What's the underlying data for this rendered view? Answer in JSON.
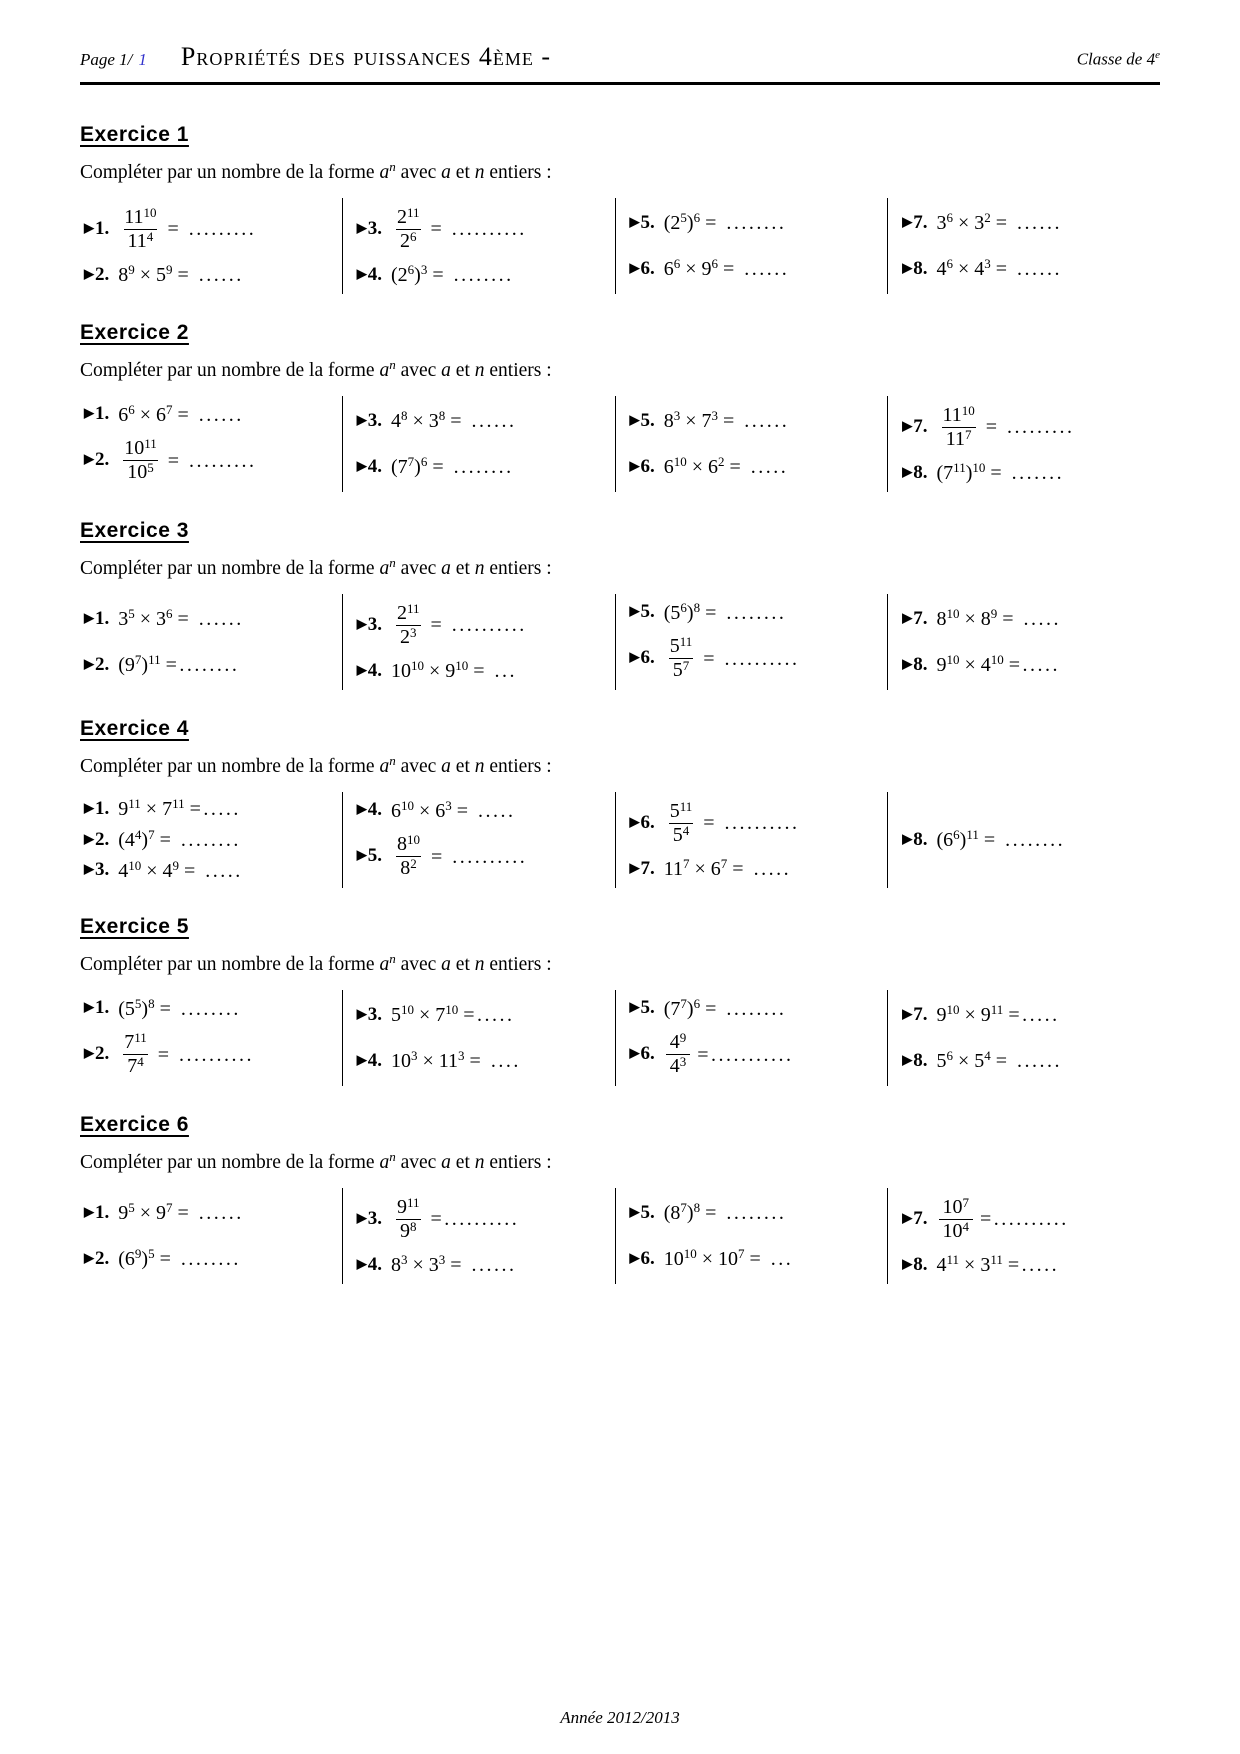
{
  "colors": {
    "page_link_blue": "#3333cc"
  },
  "symbols": {
    "marker": "▶",
    "dot": ".",
    "times": "×",
    "lparen": "(",
    "rparen": ")"
  },
  "header": {
    "page_label": "Page 1/",
    "page_number": "1",
    "title": "Propriétés des puissances 4ème -",
    "classe_text": "Classe de 4",
    "classe_sup": "e"
  },
  "instruction": {
    "part1": "Compléter par un nombre de la forme ",
    "var_a": "a",
    "var_n_sup": "n",
    "part2": " avec ",
    "var_a2": "a",
    "part3": " et ",
    "var_n2": "n",
    "part4": " entiers :"
  },
  "exercises": [
    {
      "title": "Exercice 1",
      "columns": [
        [
          {
            "n": "1",
            "k": "frac",
            "a": "11",
            "p": "10",
            "b": "11",
            "q": "4",
            "eq": "= ........."
          },
          {
            "n": "2",
            "k": "prod",
            "a": "8",
            "p": "9",
            "b": "5",
            "q": "9",
            "eq": "= ......"
          }
        ],
        [
          {
            "n": "3",
            "k": "frac",
            "a": "2",
            "p": "11",
            "b": "2",
            "q": "6",
            "eq": "= .........."
          },
          {
            "n": "4",
            "k": "pp",
            "a": "2",
            "p": "6",
            "q": "3",
            "eq": "= ........"
          }
        ],
        [
          {
            "n": "5",
            "k": "pp",
            "a": "2",
            "p": "5",
            "q": "6",
            "eq": "= ........"
          },
          {
            "n": "6",
            "k": "prod",
            "a": "6",
            "p": "6",
            "b": "9",
            "q": "6",
            "eq": "= ......"
          }
        ],
        [
          {
            "n": "7",
            "k": "prod",
            "a": "3",
            "p": "6",
            "b": "3",
            "q": "2",
            "eq": "= ......"
          },
          {
            "n": "8",
            "k": "prod",
            "a": "4",
            "p": "6",
            "b": "4",
            "q": "3",
            "eq": "= ......"
          }
        ]
      ]
    },
    {
      "title": "Exercice 2",
      "columns": [
        [
          {
            "n": "1",
            "k": "prod",
            "a": "6",
            "p": "6",
            "b": "6",
            "q": "7",
            "eq": "= ......"
          },
          {
            "n": "2",
            "k": "frac",
            "a": "10",
            "p": "11",
            "b": "10",
            "q": "5",
            "eq": "= ........."
          }
        ],
        [
          {
            "n": "3",
            "k": "prod",
            "a": "4",
            "p": "8",
            "b": "3",
            "q": "8",
            "eq": "= ......"
          },
          {
            "n": "4",
            "k": "pp",
            "a": "7",
            "p": "7",
            "q": "6",
            "eq": "= ........"
          }
        ],
        [
          {
            "n": "5",
            "k": "prod",
            "a": "8",
            "p": "3",
            "b": "7",
            "q": "3",
            "eq": "= ......"
          },
          {
            "n": "6",
            "k": "prod",
            "a": "6",
            "p": "10",
            "b": "6",
            "q": "2",
            "eq": "= ....."
          }
        ],
        [
          {
            "n": "7",
            "k": "frac",
            "a": "11",
            "p": "10",
            "b": "11",
            "q": "7",
            "eq": "= ........."
          },
          {
            "n": "8",
            "k": "pp",
            "a": "7",
            "p": "11",
            "q": "10",
            "eq": "= ......."
          }
        ]
      ]
    },
    {
      "title": "Exercice 3",
      "columns": [
        [
          {
            "n": "1",
            "k": "prod",
            "a": "3",
            "p": "5",
            "b": "3",
            "q": "6",
            "eq": "= ......"
          },
          {
            "n": "2",
            "k": "pp",
            "a": "9",
            "p": "7",
            "q": "11",
            "eq": "=........"
          }
        ],
        [
          {
            "n": "3",
            "k": "frac",
            "a": "2",
            "p": "11",
            "b": "2",
            "q": "3",
            "eq": "= .........."
          },
          {
            "n": "4",
            "k": "prod",
            "a": "10",
            "p": "10",
            "b": "9",
            "q": "10",
            "eq": "= ..."
          }
        ],
        [
          {
            "n": "5",
            "k": "pp",
            "a": "5",
            "p": "6",
            "q": "8",
            "eq": "= ........"
          },
          {
            "n": "6",
            "k": "frac",
            "a": "5",
            "p": "11",
            "b": "5",
            "q": "7",
            "eq": "= .........."
          }
        ],
        [
          {
            "n": "7",
            "k": "prod",
            "a": "8",
            "p": "10",
            "b": "8",
            "q": "9",
            "eq": "= ....."
          },
          {
            "n": "8",
            "k": "prod",
            "a": "9",
            "p": "10",
            "b": "4",
            "q": "10",
            "eq": "=....."
          }
        ]
      ]
    },
    {
      "title": "Exercice 4",
      "columns": [
        [
          {
            "n": "1",
            "k": "prod",
            "a": "9",
            "p": "11",
            "b": "7",
            "q": "11",
            "eq": "=....."
          },
          {
            "n": "2",
            "k": "pp",
            "a": "4",
            "p": "4",
            "q": "7",
            "eq": "= ........"
          },
          {
            "n": "3",
            "k": "prod",
            "a": "4",
            "p": "10",
            "b": "4",
            "q": "9",
            "eq": "= ....."
          }
        ],
        [
          {
            "n": "4",
            "k": "prod",
            "a": "6",
            "p": "10",
            "b": "6",
            "q": "3",
            "eq": "= ....."
          },
          {
            "n": "5",
            "k": "frac",
            "a": "8",
            "p": "10",
            "b": "8",
            "q": "2",
            "eq": "= .........."
          }
        ],
        [
          {
            "n": "6",
            "k": "frac",
            "a": "5",
            "p": "11",
            "b": "5",
            "q": "4",
            "eq": "= .........."
          },
          {
            "n": "7",
            "k": "prod",
            "a": "11",
            "p": "7",
            "b": "6",
            "q": "7",
            "eq": "= ....."
          }
        ],
        [
          {
            "n": "8",
            "k": "pp",
            "a": "6",
            "p": "6",
            "q": "11",
            "eq": "= ........"
          }
        ]
      ]
    },
    {
      "title": "Exercice 5",
      "columns": [
        [
          {
            "n": "1",
            "k": "pp",
            "a": "5",
            "p": "5",
            "q": "8",
            "eq": "= ........"
          },
          {
            "n": "2",
            "k": "frac",
            "a": "7",
            "p": "11",
            "b": "7",
            "q": "4",
            "eq": "= .........."
          }
        ],
        [
          {
            "n": "3",
            "k": "prod",
            "a": "5",
            "p": "10",
            "b": "7",
            "q": "10",
            "eq": "=....."
          },
          {
            "n": "4",
            "k": "prod",
            "a": "10",
            "p": "3",
            "b": "11",
            "q": "3",
            "eq": "= ...."
          }
        ],
        [
          {
            "n": "5",
            "k": "pp",
            "a": "7",
            "p": "7",
            "q": "6",
            "eq": "= ........"
          },
          {
            "n": "6",
            "k": "frac",
            "a": "4",
            "p": "9",
            "b": "4",
            "q": "3",
            "eq": "=..........."
          }
        ],
        [
          {
            "n": "7",
            "k": "prod",
            "a": "9",
            "p": "10",
            "b": "9",
            "q": "11",
            "eq": "=....."
          },
          {
            "n": "8",
            "k": "prod",
            "a": "5",
            "p": "6",
            "b": "5",
            "q": "4",
            "eq": "= ......"
          }
        ]
      ]
    },
    {
      "title": "Exercice 6",
      "columns": [
        [
          {
            "n": "1",
            "k": "prod",
            "a": "9",
            "p": "5",
            "b": "9",
            "q": "7",
            "eq": "= ......"
          },
          {
            "n": "2",
            "k": "pp",
            "a": "6",
            "p": "9",
            "q": "5",
            "eq": "= ........"
          }
        ],
        [
          {
            "n": "3",
            "k": "frac",
            "a": "9",
            "p": "11",
            "b": "9",
            "q": "8",
            "eq": "=.........."
          },
          {
            "n": "4",
            "k": "prod",
            "a": "8",
            "p": "3",
            "b": "3",
            "q": "3",
            "eq": "= ......"
          }
        ],
        [
          {
            "n": "5",
            "k": "pp",
            "a": "8",
            "p": "7",
            "q": "8",
            "eq": "= ........"
          },
          {
            "n": "6",
            "k": "prod",
            "a": "10",
            "p": "10",
            "b": "10",
            "q": "7",
            "eq": "= ..."
          }
        ],
        [
          {
            "n": "7",
            "k": "frac",
            "a": "10",
            "p": "7",
            "b": "10",
            "q": "4",
            "eq": "=.........."
          },
          {
            "n": "8",
            "k": "prod",
            "a": "4",
            "p": "11",
            "b": "3",
            "q": "11",
            "eq": "=....."
          }
        ]
      ]
    }
  ],
  "footer": {
    "text": "Année 2012/2013"
  }
}
